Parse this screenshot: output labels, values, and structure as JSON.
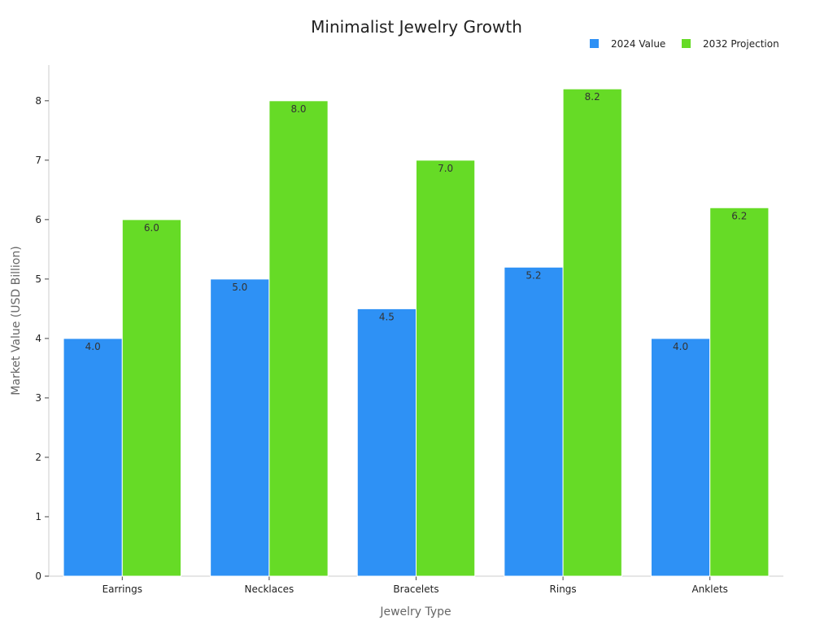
{
  "chart_data": {
    "type": "bar",
    "title": "Minimalist Jewelry Growth",
    "xlabel": "Jewelry Type",
    "ylabel": "Market Value (USD Billion)",
    "categories": [
      "Earrings",
      "Necklaces",
      "Bracelets",
      "Rings",
      "Anklets"
    ],
    "series": [
      {
        "name": "2024 Value",
        "color": "#2E91F5",
        "values": [
          4.0,
          5.0,
          4.5,
          5.2,
          4.0
        ]
      },
      {
        "name": "2032 Projection",
        "color": "#66DB26",
        "values": [
          6.0,
          8.0,
          7.0,
          8.2,
          6.2
        ]
      }
    ],
    "ylim": [
      0,
      8.6
    ],
    "yticks": [
      0,
      1,
      2,
      3,
      4,
      5,
      6,
      7,
      8
    ],
    "grid": false,
    "legend_position": "top-right",
    "data_labels": true
  }
}
